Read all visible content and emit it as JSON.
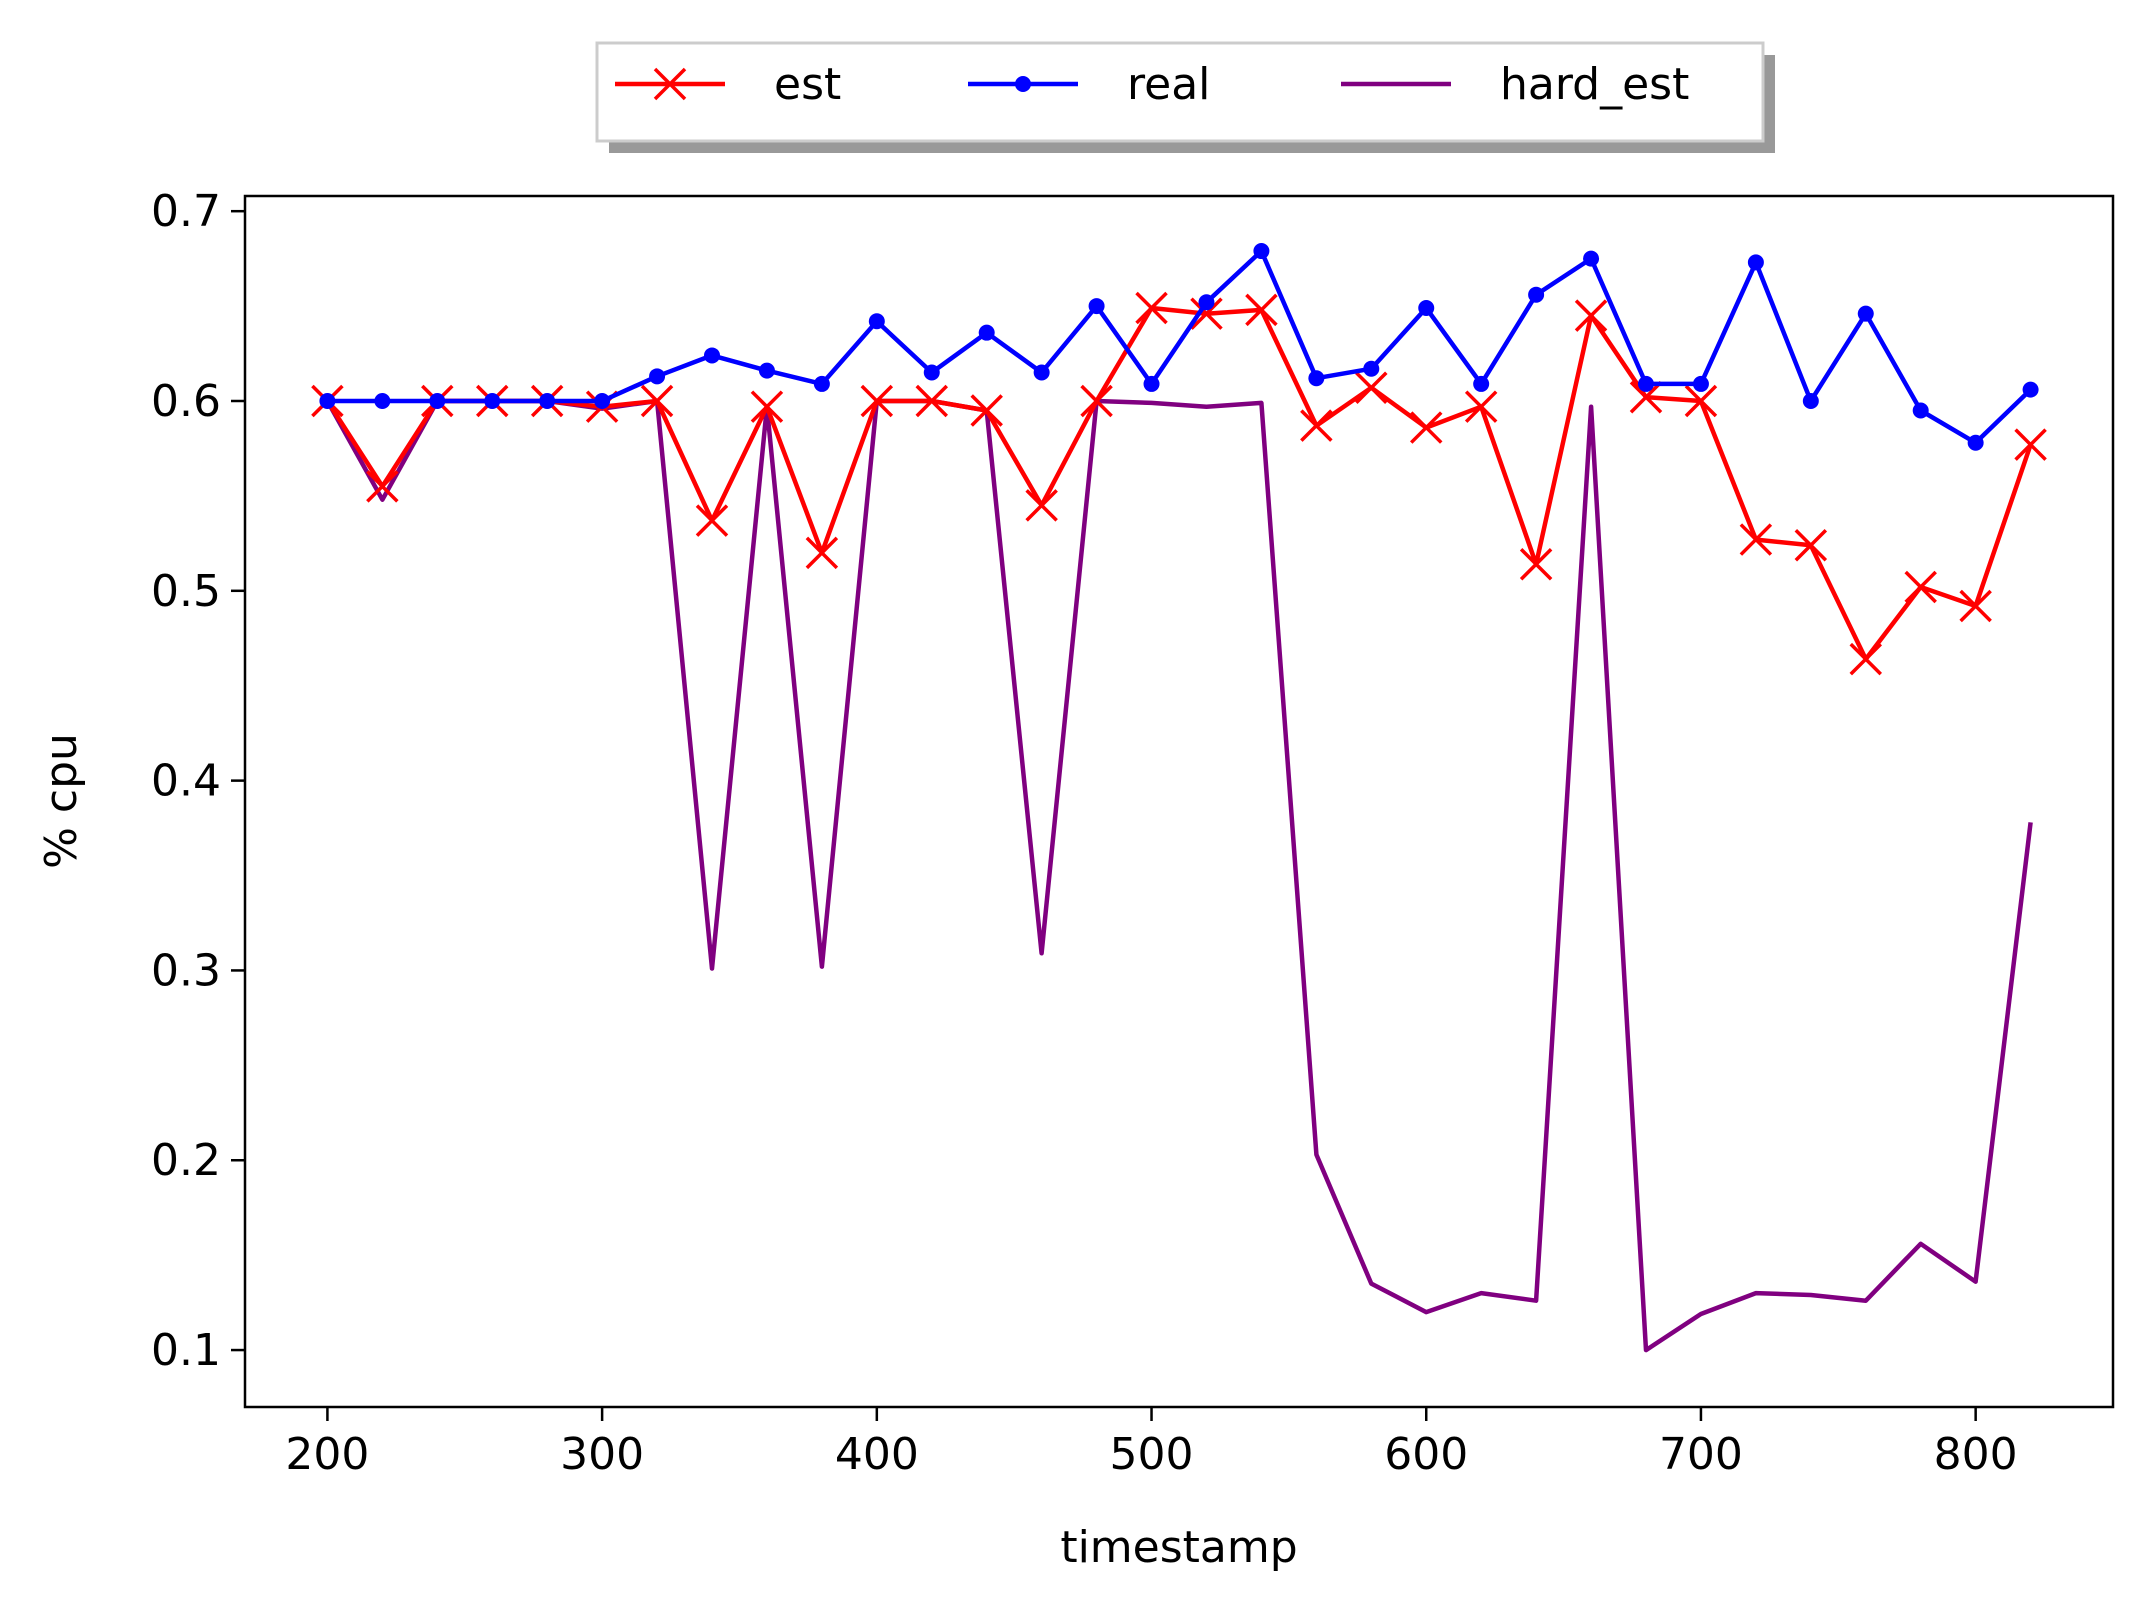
{
  "chart_data": {
    "type": "line",
    "title": "",
    "xlabel": "timestamp",
    "ylabel": "% cpu",
    "xlim": [
      170,
      850
    ],
    "ylim": [
      0.07,
      0.708
    ],
    "xticks": [
      200,
      300,
      400,
      500,
      600,
      700,
      800
    ],
    "yticks": [
      0.1,
      0.2,
      0.3,
      0.4,
      0.5,
      0.6,
      0.7
    ],
    "grid": false,
    "legend_placement": "top-center, above plot",
    "x": [
      200,
      220,
      240,
      260,
      280,
      300,
      320,
      340,
      360,
      380,
      400,
      420,
      440,
      460,
      480,
      500,
      520,
      540,
      560,
      580,
      600,
      620,
      640,
      660,
      680,
      700,
      720,
      740,
      760,
      780,
      800,
      820
    ],
    "series": [
      {
        "name": "est",
        "color": "#ff0000",
        "marker": "x",
        "values": [
          0.6,
          0.555,
          0.6,
          0.6,
          0.6,
          0.597,
          0.6,
          0.537,
          0.597,
          0.52,
          0.6,
          0.6,
          0.595,
          0.545,
          0.6,
          0.649,
          0.646,
          0.648,
          0.587,
          0.607,
          0.586,
          0.597,
          0.514,
          0.645,
          0.602,
          0.6,
          0.527,
          0.524,
          0.464,
          0.502,
          0.492,
          0.577
        ]
      },
      {
        "name": "real",
        "color": "#0000ff",
        "marker": "dot",
        "values": [
          0.6,
          0.6,
          0.6,
          0.6,
          0.6,
          0.6,
          0.613,
          0.624,
          0.616,
          0.609,
          0.642,
          0.615,
          0.636,
          0.615,
          0.65,
          0.609,
          0.652,
          0.679,
          0.612,
          0.617,
          0.649,
          0.609,
          0.656,
          0.675,
          0.609,
          0.609,
          0.673,
          0.6,
          0.646,
          0.595,
          0.578,
          0.606
        ]
      },
      {
        "name": "hard_est",
        "color": "#800080",
        "marker": "none",
        "values": [
          0.6,
          0.548,
          0.6,
          0.6,
          0.6,
          0.596,
          0.6,
          0.301,
          0.597,
          0.302,
          0.6,
          0.6,
          0.595,
          0.309,
          0.6,
          0.599,
          0.597,
          0.599,
          0.203,
          0.135,
          0.12,
          0.13,
          0.126,
          0.597,
          0.1,
          0.119,
          0.13,
          0.129,
          0.126,
          0.156,
          0.136,
          0.378
        ]
      }
    ]
  }
}
